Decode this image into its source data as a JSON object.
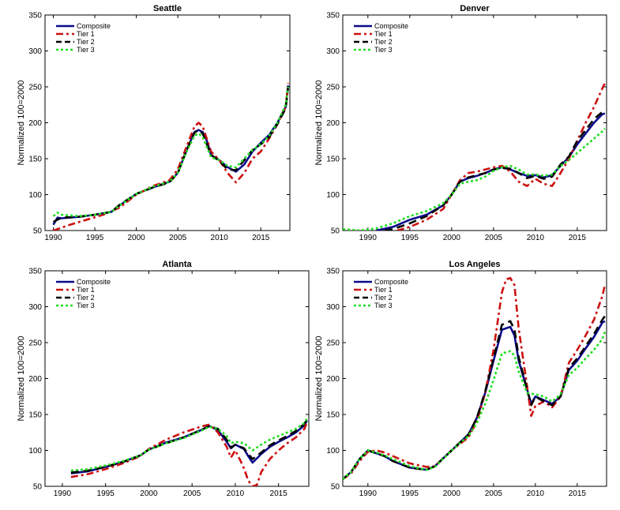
{
  "chart_data": [
    {
      "type": "line",
      "title": "Seattle",
      "xlabel": "",
      "ylabel": "Normalized 100=2000",
      "xlim": [
        1989,
        2018.5
      ],
      "ylim": [
        50,
        350
      ],
      "xticks": [
        1990,
        1995,
        2000,
        2005,
        2010,
        2015
      ],
      "yticks": [
        50,
        100,
        150,
        200,
        250,
        300,
        350
      ],
      "legend": "top-left",
      "series": [
        {
          "name": "Composite",
          "color": "#0a0a8c",
          "dash": "solid",
          "x": [
            1990,
            1990.5,
            1991,
            1993,
            1995,
            1997,
            1998,
            2000,
            2002,
            2004,
            2005,
            2006,
            2007,
            2007.5,
            2008,
            2008.5,
            2009,
            2010,
            2011,
            2012,
            2013,
            2014,
            2015,
            2016,
            2017,
            2018,
            2018.3
          ],
          "y": [
            58,
            68,
            67,
            69,
            72,
            76,
            85,
            101,
            110,
            118,
            130,
            160,
            187,
            190,
            187,
            175,
            155,
            148,
            138,
            132,
            142,
            160,
            172,
            183,
            200,
            222,
            252
          ]
        },
        {
          "name": "Tier 1",
          "color": "#cc1111",
          "dash": "9,4,3,4",
          "x": [
            1990,
            1992,
            1994,
            1996,
            1998,
            2000,
            2002,
            2004,
            2005,
            2006,
            2007,
            2007.5,
            2008,
            2009,
            2010,
            2011,
            2012,
            2013,
            2014,
            2015,
            2016,
            2017,
            2018,
            2018.3
          ],
          "y": [
            50,
            58,
            65,
            72,
            82,
            100,
            112,
            120,
            135,
            165,
            195,
            200,
            195,
            160,
            148,
            130,
            117,
            130,
            150,
            160,
            178,
            198,
            222,
            255
          ]
        },
        {
          "name": "Tier 2",
          "color": "#000000",
          "dash": "10,6",
          "x": [
            1990,
            1991,
            1993,
            1995,
            1997,
            1998,
            2000,
            2002,
            2004,
            2005,
            2006,
            2007,
            2007.5,
            2008,
            2009,
            2010,
            2011,
            2012,
            2013,
            2014,
            2015,
            2016,
            2017,
            2018,
            2018.3
          ],
          "y": [
            62,
            68,
            69,
            72,
            76,
            86,
            101,
            110,
            117,
            130,
            160,
            186,
            190,
            185,
            155,
            147,
            135,
            134,
            148,
            162,
            170,
            180,
            198,
            220,
            250
          ]
        },
        {
          "name": "Tier 3",
          "color": "#22dd22",
          "dash": "3,3",
          "x": [
            1990,
            1990.5,
            1991,
            1993,
            1995,
            1997,
            1998,
            2000,
            2002,
            2004,
            2005,
            2006,
            2007,
            2007.5,
            2008,
            2009,
            2010,
            2011,
            2012,
            2013,
            2014,
            2015,
            2016,
            2017,
            2018,
            2018.3
          ],
          "y": [
            70,
            75,
            72,
            70,
            72,
            76,
            85,
            101,
            111,
            118,
            130,
            158,
            182,
            185,
            180,
            152,
            148,
            140,
            138,
            150,
            162,
            170,
            182,
            200,
            225,
            250
          ]
        }
      ]
    },
    {
      "type": "line",
      "title": "Denver",
      "xlabel": "",
      "ylabel": "Normalized 100=2000",
      "xlim": [
        1987,
        2018.5
      ],
      "ylim": [
        50,
        350
      ],
      "xticks": [
        1990,
        1995,
        2000,
        2005,
        2010,
        2015
      ],
      "yticks": [
        50,
        100,
        150,
        200,
        250,
        300,
        350
      ],
      "legend": "top-left",
      "series": [
        {
          "name": "Composite",
          "color": "#0a0a8c",
          "dash": "solid",
          "x": [
            1991,
            1993,
            1995,
            1997,
            1999,
            2000,
            2001,
            2002,
            2003,
            2004,
            2005,
            2006,
            2007,
            2008,
            2009,
            2010,
            2011,
            2012,
            2013,
            2014,
            2015,
            2016,
            2017,
            2018,
            2018.3
          ],
          "y": [
            50,
            55,
            65,
            72,
            85,
            100,
            118,
            123,
            126,
            130,
            135,
            138,
            135,
            130,
            126,
            127,
            124,
            127,
            140,
            152,
            170,
            185,
            200,
            212,
            213
          ]
        },
        {
          "name": "Tier 1",
          "color": "#cc1111",
          "dash": "9,4,3,4",
          "x": [
            1993.5,
            1995,
            1997,
            1999,
            2000,
            2001,
            2002,
            2003,
            2004,
            2005,
            2006,
            2007,
            2008,
            2009,
            2010,
            2011,
            2012,
            2013,
            2014,
            2015,
            2016,
            2017,
            2018,
            2018.3
          ],
          "y": [
            50,
            55,
            65,
            80,
            100,
            120,
            130,
            132,
            135,
            138,
            140,
            132,
            118,
            112,
            122,
            115,
            112,
            130,
            150,
            175,
            200,
            222,
            248,
            255
          ]
        },
        {
          "name": "Tier 2",
          "color": "#000000",
          "dash": "10,6",
          "x": [
            1992,
            1993,
            1995,
            1997,
            1999,
            2000,
            2001,
            2002,
            2003,
            2004,
            2005,
            2006,
            2007,
            2008,
            2009,
            2010,
            2011,
            2012,
            2013,
            2014,
            2015,
            2016,
            2017,
            2018,
            2018.3
          ],
          "y": [
            50,
            52,
            60,
            70,
            85,
            100,
            118,
            124,
            127,
            130,
            135,
            137,
            136,
            130,
            123,
            126,
            122,
            125,
            142,
            153,
            175,
            190,
            205,
            215,
            218
          ]
        },
        {
          "name": "Tier 3",
          "color": "#22dd22",
          "dash": "3,3",
          "x": [
            1987,
            1989,
            1991,
            1993,
            1995,
            1997,
            1999,
            2000,
            2001,
            2002,
            2003,
            2004,
            2005,
            2006,
            2007,
            2008,
            2009,
            2010,
            2011,
            2012,
            2013,
            2014,
            2015,
            2016,
            2017,
            2018,
            2018.3
          ],
          "y": [
            52,
            50,
            53,
            60,
            70,
            77,
            88,
            100,
            115,
            118,
            120,
            125,
            133,
            138,
            140,
            135,
            128,
            128,
            126,
            128,
            140,
            148,
            158,
            168,
            178,
            188,
            192
          ]
        }
      ]
    },
    {
      "type": "line",
      "title": "Atlanta",
      "xlabel": "",
      "ylabel": "Normalized 100=2000",
      "xlim": [
        1988,
        2018.5
      ],
      "ylim": [
        50,
        350
      ],
      "xticks": [
        1990,
        1995,
        2000,
        2005,
        2010,
        2015
      ],
      "yticks": [
        50,
        100,
        150,
        200,
        250,
        300,
        350
      ],
      "legend": "top-left",
      "series": [
        {
          "name": "Composite",
          "color": "#0a0a8c",
          "dash": "solid",
          "x": [
            1991,
            1993,
            1995,
            1997,
            1999,
            2000,
            2002,
            2004,
            2006,
            2007,
            2008,
            2009,
            2009.5,
            2010,
            2011,
            2011.5,
            2012,
            2013,
            2014,
            2015,
            2016,
            2017,
            2018,
            2018.3
          ],
          "y": [
            68,
            71,
            77,
            84,
            93,
            101,
            111,
            118,
            128,
            134,
            128,
            112,
            103,
            108,
            102,
            92,
            83,
            95,
            105,
            112,
            118,
            125,
            135,
            142
          ]
        },
        {
          "name": "Tier 1",
          "color": "#cc1111",
          "dash": "9,4,3,4",
          "x": [
            1991,
            1993,
            1995,
            1997,
            1999,
            2000,
            2002,
            2004,
            2006,
            2007,
            2008,
            2009,
            2009.5,
            2010,
            2010.5,
            2011,
            2011.5,
            2012,
            2012.5,
            2013,
            2014,
            2015,
            2016,
            2017,
            2018,
            2018.3
          ],
          "y": [
            63,
            67,
            74,
            82,
            92,
            102,
            115,
            125,
            133,
            136,
            125,
            105,
            90,
            100,
            88,
            75,
            58,
            50,
            52,
            70,
            88,
            100,
            110,
            118,
            130,
            140
          ]
        },
        {
          "name": "Tier 2",
          "color": "#000000",
          "dash": "10,6",
          "x": [
            1991,
            1993,
            1995,
            1997,
            1999,
            2000,
            2002,
            2004,
            2006,
            2007,
            2008,
            2009,
            2009.5,
            2010,
            2011,
            2011.5,
            2012,
            2013,
            2014,
            2015,
            2016,
            2017,
            2018,
            2018.3
          ],
          "y": [
            69,
            72,
            77,
            84,
            93,
            101,
            110,
            118,
            128,
            134,
            130,
            115,
            104,
            108,
            103,
            95,
            88,
            97,
            107,
            114,
            120,
            127,
            137,
            143
          ]
        },
        {
          "name": "Tier 3",
          "color": "#22dd22",
          "dash": "3,3",
          "x": [
            1991,
            1993,
            1995,
            1997,
            1999,
            2000,
            2002,
            2004,
            2006,
            2007,
            2008,
            2009,
            2009.5,
            2010,
            2011,
            2012,
            2013,
            2014,
            2015,
            2016,
            2017,
            2018,
            2018.3
          ],
          "y": [
            72,
            74,
            79,
            85,
            93,
            101,
            110,
            117,
            127,
            133,
            130,
            120,
            110,
            112,
            110,
            100,
            108,
            115,
            120,
            125,
            130,
            138,
            145
          ]
        }
      ]
    },
    {
      "type": "line",
      "title": "Los Angeles",
      "xlabel": "",
      "ylabel": "Normalized 100=2000",
      "xlim": [
        1987,
        2018.5
      ],
      "ylim": [
        50,
        350
      ],
      "xticks": [
        1990,
        1995,
        2000,
        2005,
        2010,
        2015
      ],
      "yticks": [
        50,
        100,
        150,
        200,
        250,
        300,
        350
      ],
      "legend": "top-left",
      "series": [
        {
          "name": "Composite",
          "color": "#0a0a8c",
          "dash": "solid",
          "x": [
            1987,
            1988,
            1989,
            1990,
            1991,
            1992,
            1993,
            1995,
            1997,
            1998,
            2000,
            2002,
            2003,
            2004,
            2005,
            2006,
            2007,
            2007.5,
            2008,
            2009,
            2009.5,
            2010,
            2011,
            2012,
            2013,
            2014,
            2015,
            2016,
            2017,
            2018,
            2018.3
          ],
          "y": [
            60,
            70,
            88,
            100,
            96,
            92,
            85,
            76,
            73,
            78,
            100,
            122,
            145,
            180,
            225,
            268,
            272,
            260,
            225,
            185,
            165,
            175,
            170,
            165,
            175,
            212,
            225,
            242,
            258,
            278,
            280
          ]
        },
        {
          "name": "Tier 1",
          "color": "#cc1111",
          "dash": "9,4,3,4",
          "x": [
            1987,
            1988,
            1989,
            1990,
            1991,
            1992,
            1993,
            1995,
            1997,
            1998,
            2000,
            2002,
            2003,
            2004,
            2005,
            2006,
            2006.5,
            2007,
            2007.5,
            2008,
            2009,
            2009.5,
            2010,
            2011,
            2012,
            2013,
            2014,
            2015,
            2016,
            2017,
            2018,
            2018.3
          ],
          "y": [
            60,
            68,
            85,
            98,
            100,
            97,
            92,
            82,
            77,
            78,
            100,
            118,
            140,
            180,
            240,
            320,
            338,
            340,
            330,
            270,
            190,
            148,
            162,
            168,
            160,
            175,
            222,
            240,
            260,
            282,
            315,
            330
          ]
        },
        {
          "name": "Tier 2",
          "color": "#000000",
          "dash": "10,6",
          "x": [
            1987,
            1988,
            1989,
            1990,
            1991,
            1992,
            1993,
            1995,
            1997,
            1998,
            2000,
            2002,
            2003,
            2004,
            2005,
            2006,
            2007,
            2007.5,
            2008,
            2009,
            2009.5,
            2010,
            2011,
            2012,
            2013,
            2014,
            2015,
            2016,
            2017,
            2018,
            2018.3
          ],
          "y": [
            60,
            70,
            88,
            100,
            96,
            92,
            85,
            76,
            73,
            78,
            100,
            122,
            145,
            182,
            228,
            275,
            280,
            268,
            230,
            185,
            163,
            175,
            168,
            163,
            175,
            215,
            228,
            245,
            262,
            282,
            287
          ]
        },
        {
          "name": "Tier 3",
          "color": "#22dd22",
          "dash": "3,3",
          "x": [
            1987,
            1988,
            1989,
            1990,
            1991,
            1992,
            1993,
            1995,
            1997,
            1998,
            2000,
            2002,
            2003,
            2004,
            2005,
            2006,
            2007,
            2007.5,
            2008,
            2009,
            2010,
            2011,
            2012,
            2013,
            2014,
            2015,
            2016,
            2017,
            2018,
            2018.3
          ],
          "y": [
            60,
            70,
            88,
            100,
            97,
            93,
            88,
            78,
            73,
            77,
            100,
            120,
            138,
            165,
            198,
            235,
            238,
            232,
            210,
            180,
            178,
            175,
            168,
            178,
            205,
            215,
            228,
            240,
            255,
            265
          ]
        }
      ]
    }
  ]
}
